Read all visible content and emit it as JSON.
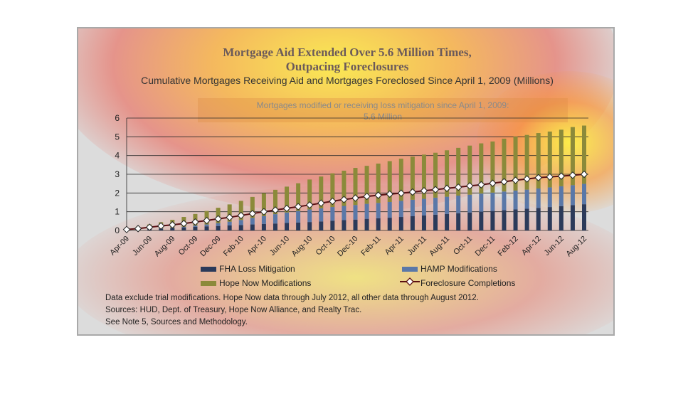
{
  "header": {
    "title_line1": "Mortgage Aid Extended Over 5.6 Million Times,",
    "title_line2": "Outpacing Foreclosures",
    "subtitle": "Cumulative Mortgages Receiving Aid and Mortgages Foreclosed Since April 1, 2009 (Millions)"
  },
  "callout": {
    "line1": "Mortgages modified or receiving loss mitigation since April 1, 2009:",
    "line2": "5.6 Million"
  },
  "legend": {
    "fha": "FHA Loss Mitigation",
    "hamp": "HAMP Modifications",
    "hope": "Hope Now Modifications",
    "foreclosure": "Foreclosure Completions"
  },
  "notes": {
    "line1": "Data exclude trial modifications. Hope Now data through July 2012, all other data through August 2012.",
    "line2": "Sources:  HUD, Dept. of Treasury, Hope Now Alliance, and Realty Trac.",
    "line3": "See Note 5, Sources and Methodology."
  },
  "colors": {
    "fha": "#2b3a5a",
    "hamp": "#5a78a8",
    "hope": "#8b8a3a",
    "foreclosure_line": "#5a0f12",
    "marker_fill": "#ffffff"
  },
  "chart_data": {
    "type": "bar",
    "stacked": true,
    "ylim": [
      0,
      6
    ],
    "yticks": [
      0,
      1,
      2,
      3,
      4,
      5,
      6
    ],
    "categories": [
      "Apr-09",
      "May-09",
      "Jun-09",
      "Jul-09",
      "Aug-09",
      "Sep-09",
      "Oct-09",
      "Nov-09",
      "Dec-09",
      "Jan-10",
      "Feb-10",
      "Mar-10",
      "Apr-10",
      "May-10",
      "Jun-10",
      "Jul-10",
      "Aug-10",
      "Sep-10",
      "Oct-10",
      "Nov-10",
      "Dec-10",
      "Jan-11",
      "Feb-11",
      "Mar-11",
      "Apr-11",
      "May-11",
      "Jun-11",
      "Jul-11",
      "Aug-11",
      "Sep-11",
      "Oct-11",
      "Nov-11",
      "Dec-11",
      "Jan-12",
      "Feb-12",
      "Mar-12",
      "Apr-12",
      "May-12",
      "Jun-12",
      "Jul-12",
      "Aug-12"
    ],
    "tick_labels": [
      "Apr-09",
      "Jun-09",
      "Aug-09",
      "Oct-09",
      "Dec-09",
      "Feb-10",
      "Apr-10",
      "Jun-10",
      "Aug-10",
      "Oct-10",
      "Dec-10",
      "Feb-11",
      "Apr-11",
      "Jun-11",
      "Aug-11",
      "Oct-11",
      "Dec-11",
      "Feb-12",
      "Apr-12",
      "Jun-12",
      "Aug-12"
    ],
    "series": [
      {
        "name": "FHA Loss Mitigation",
        "values": [
          0.02,
          0.05,
          0.08,
          0.1,
          0.13,
          0.16,
          0.19,
          0.22,
          0.24,
          0.27,
          0.29,
          0.32,
          0.35,
          0.37,
          0.4,
          0.42,
          0.45,
          0.48,
          0.52,
          0.55,
          0.58,
          0.62,
          0.65,
          0.68,
          0.72,
          0.76,
          0.8,
          0.84,
          0.88,
          0.92,
          0.96,
          1.0,
          1.04,
          1.08,
          1.12,
          1.16,
          1.2,
          1.25,
          1.3,
          1.35,
          1.4
        ]
      },
      {
        "name": "HAMP Modifications",
        "values": [
          0.0,
          0.0,
          0.0,
          0.01,
          0.02,
          0.04,
          0.07,
          0.1,
          0.15,
          0.2,
          0.27,
          0.35,
          0.42,
          0.5,
          0.56,
          0.62,
          0.67,
          0.7,
          0.73,
          0.76,
          0.78,
          0.8,
          0.82,
          0.84,
          0.86,
          0.88,
          0.89,
          0.91,
          0.92,
          0.94,
          0.95,
          0.97,
          0.98,
          1.0,
          1.01,
          1.02,
          1.04,
          1.05,
          1.06,
          1.07,
          1.09
        ]
      },
      {
        "name": "Hope Now Modifications",
        "values": [
          0.08,
          0.15,
          0.24,
          0.33,
          0.42,
          0.52,
          0.62,
          0.72,
          0.82,
          0.92,
          1.02,
          1.12,
          1.22,
          1.3,
          1.38,
          1.48,
          1.6,
          1.7,
          1.8,
          1.88,
          1.98,
          2.03,
          2.1,
          2.18,
          2.25,
          2.3,
          2.36,
          2.4,
          2.48,
          2.55,
          2.62,
          2.68,
          2.73,
          2.82,
          2.88,
          2.92,
          2.96,
          2.98,
          3.02,
          3.1,
          3.11
        ]
      }
    ],
    "line_series": {
      "name": "Foreclosure Completions",
      "values": [
        0.05,
        0.1,
        0.17,
        0.24,
        0.3,
        0.37,
        0.45,
        0.53,
        0.62,
        0.7,
        0.8,
        0.9,
        1.0,
        1.09,
        1.18,
        1.27,
        1.36,
        1.46,
        1.56,
        1.65,
        1.73,
        1.82,
        1.88,
        1.94,
        1.99,
        2.05,
        2.12,
        2.18,
        2.25,
        2.31,
        2.38,
        2.44,
        2.52,
        2.6,
        2.68,
        2.75,
        2.82,
        2.86,
        2.9,
        2.95,
        3.0
      ]
    }
  }
}
